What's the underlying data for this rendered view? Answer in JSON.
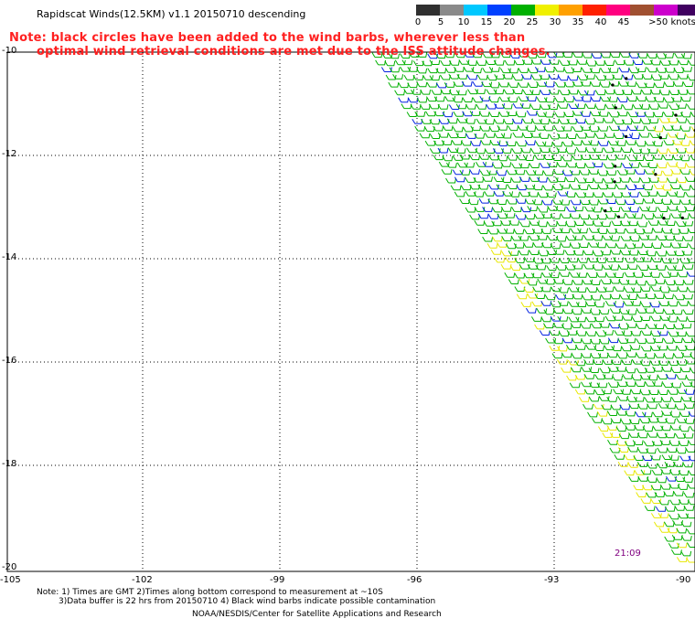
{
  "title": "Rapidscat Winds(12.5KM) v1.1 20150710 descending",
  "notice": {
    "line1": "Note: black circles have been added to the wind barbs, wherever less than",
    "line2": "optimal wind retrieval conditions are met due to the ISS attitude changes."
  },
  "legend": {
    "labels": [
      "0",
      "5",
      "10",
      "15",
      "20",
      "25",
      "30",
      "35",
      "40",
      "45",
      ">50 knots"
    ],
    "colors": [
      "#303030",
      "#8a8a8a",
      "#00c8ff",
      "#0040ff",
      "#00b000",
      "#f0f000",
      "#ffa000",
      "#ff2000",
      "#ff0080",
      "#a05030",
      "#cc00cc",
      "#400060"
    ]
  },
  "axes": {
    "x_ticks": [
      "-105",
      "-102",
      "-99",
      "-96",
      "-93",
      "-90"
    ],
    "y_ticks": [
      "-10",
      "-12",
      "-14",
      "-16",
      "-18",
      "-20"
    ]
  },
  "time_label": "21:09",
  "footer": {
    "note_line1": "Note: 1) Times are GMT 2)Times along bottom correspond to measurement at ~10S",
    "note_line2": "3)Data buffer is 22 hrs from 20150710 4) Black wind barbs indicate possible contamination",
    "credit": "NOAA/NESDIS/Center for Satellite Applications and Research"
  }
}
